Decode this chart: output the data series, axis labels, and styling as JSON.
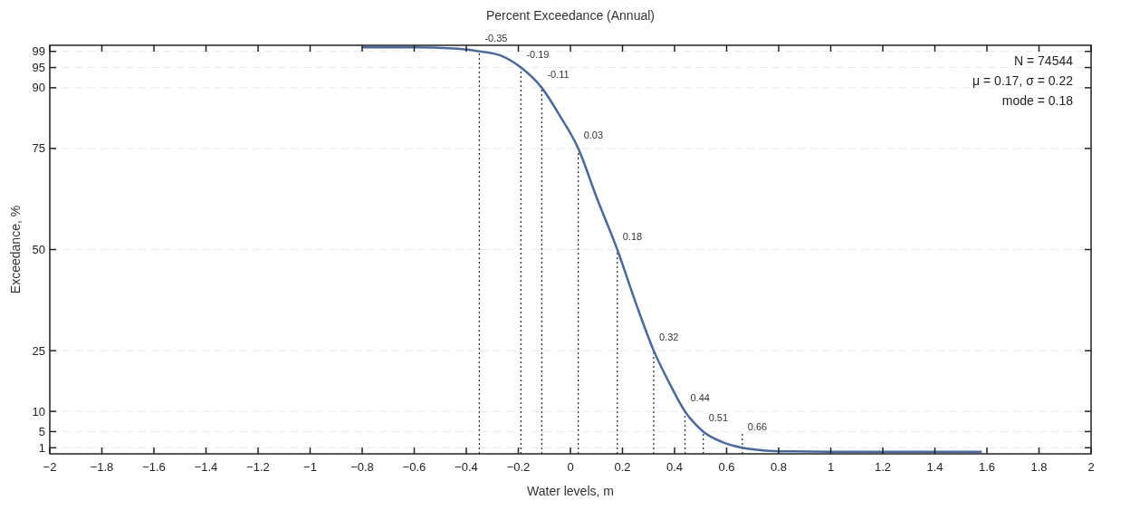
{
  "chart_data": {
    "type": "line",
    "title": "Percent Exceedance (Annual)",
    "xlabel": "Water levels, m",
    "ylabel": "Exceedance, %",
    "series": [
      {
        "color": "#4a6a9c",
        "x": [
          -0.8,
          -0.6,
          -0.45,
          -0.35,
          -0.27,
          -0.19,
          -0.11,
          -0.04,
          0.03,
          0.1,
          0.18,
          0.25,
          0.32,
          0.38,
          0.44,
          0.51,
          0.58,
          0.66,
          0.75,
          0.85,
          1.0,
          1.58
        ],
        "values": [
          100,
          100,
          99.7,
          99,
          98,
          95,
          90,
          83,
          75,
          63,
          50,
          37,
          25,
          17,
          10,
          5,
          2.5,
          1,
          0.3,
          0.1,
          0,
          0
        ]
      }
    ],
    "xlim": [
      -2,
      2
    ],
    "xticks": [
      {
        "value": -2,
        "label": "−2"
      },
      {
        "value": -1.8,
        "label": "−1.8"
      },
      {
        "value": -1.6,
        "label": "−1.6"
      },
      {
        "value": -1.4,
        "label": "−1.4"
      },
      {
        "value": -1.2,
        "label": "−1.2"
      },
      {
        "value": -1,
        "label": "−1"
      },
      {
        "value": -0.8,
        "label": "−0.8"
      },
      {
        "value": -0.6,
        "label": "−0.6"
      },
      {
        "value": -0.4,
        "label": "−0.4"
      },
      {
        "value": -0.2,
        "label": "−0.2"
      },
      0,
      0.2,
      0.4,
      0.6,
      0.8,
      1,
      1.2,
      1.4,
      1.6,
      1.8,
      2
    ],
    "ylim": [
      -0.5,
      100.5
    ],
    "yticks": [
      1,
      5,
      10,
      25,
      50,
      75,
      90,
      95,
      99
    ],
    "grid": "y",
    "marker": "none",
    "line_style": "solid",
    "ref_lines": [
      {
        "axis": "x",
        "value": -0.35,
        "label": "-0.35",
        "color": "#333333",
        "line_style": "dotted"
      },
      {
        "axis": "x",
        "value": -0.19,
        "label": "-0.19",
        "color": "#333333",
        "line_style": "dotted"
      },
      {
        "axis": "x",
        "value": -0.11,
        "label": "-0.11",
        "color": "#333333",
        "line_style": "dotted"
      },
      {
        "axis": "x",
        "value": 0.03,
        "label": "0.03",
        "color": "#333333",
        "line_style": "dotted"
      },
      {
        "axis": "x",
        "value": 0.18,
        "label": "0.18",
        "color": "#333333",
        "line_style": "dotted"
      },
      {
        "axis": "x",
        "value": 0.32,
        "label": "0.32",
        "color": "#333333",
        "line_style": "dotted"
      },
      {
        "axis": "x",
        "value": 0.44,
        "label": "0.44",
        "color": "#333333",
        "line_style": "dotted"
      },
      {
        "axis": "x",
        "value": 0.51,
        "label": "0.51",
        "color": "#333333",
        "line_style": "dotted"
      },
      {
        "axis": "x",
        "value": 0.66,
        "label": "0.66",
        "color": "#333333",
        "line_style": "dotted"
      }
    ],
    "annotations": [
      "N = 74544",
      "μ = 0.17, σ = 0.22",
      "mode = 0.18"
    ]
  }
}
